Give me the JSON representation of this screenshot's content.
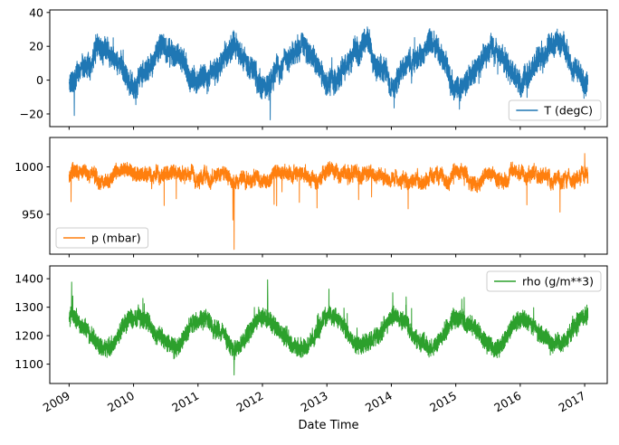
{
  "figure": {
    "xlabel": "Date Time",
    "background": "#ffffff",
    "axis_color": "#000000",
    "x_ticks": [
      2009,
      2010,
      2011,
      2012,
      2013,
      2014,
      2015,
      2016,
      2017
    ],
    "xlim": [
      2008.7,
      2017.35
    ],
    "data_x_range": [
      2009.0,
      2017.05
    ]
  },
  "chart_data": [
    {
      "type": "line",
      "series_name": "T (degC)",
      "legend_label": "T (degC)",
      "legend_position": "lower-right",
      "color": "#1f77b4",
      "ylim": [
        -27.5,
        41.5
      ],
      "yticks": [
        -20,
        0,
        20,
        40
      ],
      "monthly_climatology": [
        -2.5,
        -0.5,
        4,
        9.5,
        14.5,
        18,
        20.5,
        19.5,
        15,
        9.5,
        4,
        0
      ],
      "seasonal": {
        "mean": 9.5,
        "amplitude": 11.5,
        "peak_month": "July"
      },
      "noise_band": 8.5,
      "wander_band": 4.5,
      "outliers": {
        "direction": "both",
        "rate": 0.02,
        "scale": 9
      },
      "observed_range": [
        -24,
        38.5
      ],
      "events": [
        {
          "x": 2009.08,
          "y": -21
        },
        {
          "x": 2012.12,
          "y": -23.5
        }
      ]
    },
    {
      "type": "line",
      "series_name": "p (mbar)",
      "legend_label": "p (mbar)",
      "legend_position": "lower-left",
      "color": "#ff7f0e",
      "ylim": [
        908,
        1031
      ],
      "yticks": [
        950,
        1000
      ],
      "monthly_climatology": [
        990.5,
        989.5,
        989,
        988.5,
        988,
        988,
        988,
        988.5,
        989,
        990,
        990.5,
        991
      ],
      "seasonal": {
        "mean": 989,
        "amplitude": 1.5,
        "peak_month": "December"
      },
      "noise_band": 9,
      "wander_band": 7,
      "outliers": {
        "direction": "down",
        "rate": 0.007,
        "scale": 40
      },
      "observed_range": [
        913,
        1017
      ],
      "events": [
        {
          "x": 2011.56,
          "y": 913
        },
        {
          "x": 2017.0,
          "y": 1014
        }
      ]
    },
    {
      "type": "line",
      "series_name": "rho (g/m**3)",
      "legend_label": "rho (g/m**3)",
      "legend_position": "upper-right",
      "color": "#2ca02c",
      "ylim": [
        1032,
        1445
      ],
      "yticks": [
        1100,
        1200,
        1300,
        1400
      ],
      "monthly_climatology": [
        1266,
        1258,
        1242,
        1220,
        1199,
        1180,
        1164,
        1162,
        1178,
        1204,
        1232,
        1256
      ],
      "seasonal": {
        "mean": 1212,
        "amplitude": 54,
        "peak_month": "January"
      },
      "noise_band": 38,
      "wander_band": 14,
      "outliers": {
        "direction": "up",
        "rate": 0.015,
        "scale": 70
      },
      "observed_range": [
        1059,
        1398
      ],
      "events": [
        {
          "x": 2009.04,
          "y": 1388
        },
        {
          "x": 2011.56,
          "y": 1062
        },
        {
          "x": 2012.08,
          "y": 1396
        }
      ]
    }
  ]
}
